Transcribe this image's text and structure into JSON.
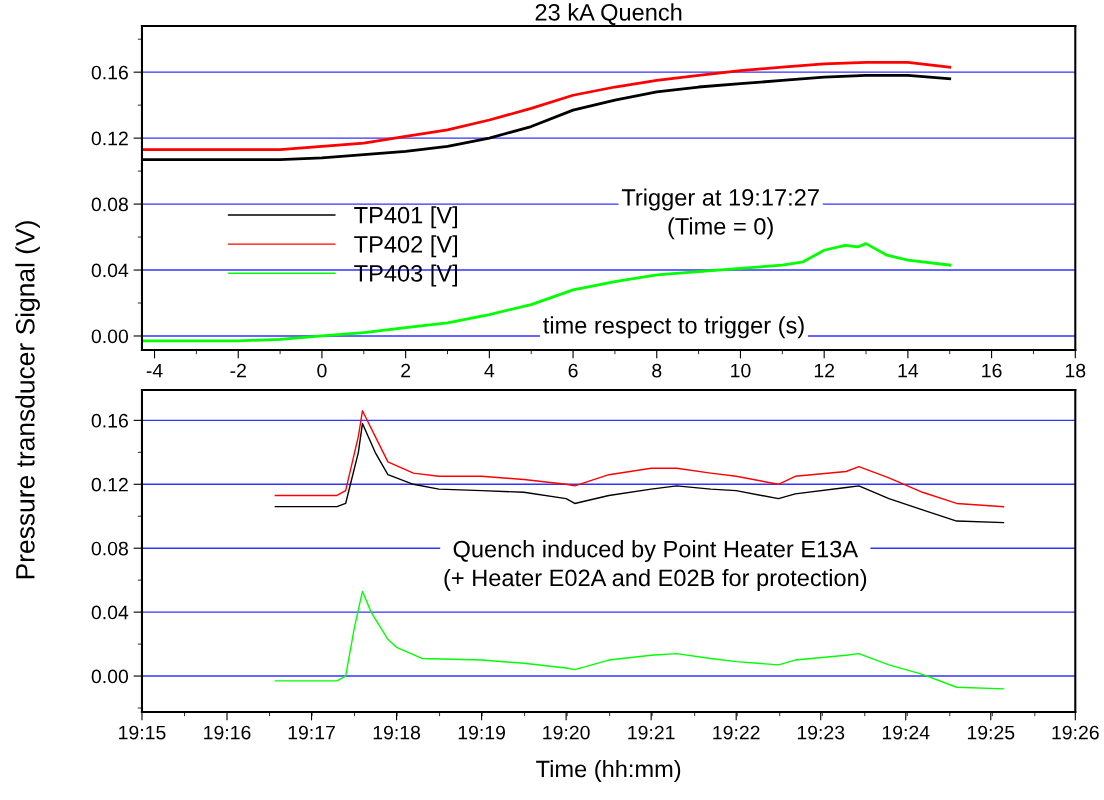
{
  "chart_data": [
    {
      "type": "line",
      "title": "23 kA Quench",
      "ylabel": "Pressure transducer Signal (V)",
      "annotations": [
        "Trigger at 19:17:27\n(Time = 0)",
        "time respect to trigger (s)"
      ],
      "xlim": [
        -4.3,
        18
      ],
      "xticks": [
        -4,
        -2,
        0,
        2,
        4,
        6,
        8,
        10,
        12,
        14,
        16,
        18
      ],
      "ylim": [
        -0.0085,
        0.188
      ],
      "yticks": [
        {
          "value": 0,
          "label": "0.00"
        },
        {
          "value": 0.04,
          "label": "0.04"
        },
        {
          "value": 0.08,
          "label": "0.08"
        },
        {
          "value": 0.12,
          "label": "0.12"
        },
        {
          "value": 0.16,
          "label": "0.16"
        }
      ],
      "grid": "y",
      "legend": "left",
      "marker": "none",
      "line_style": "solid",
      "series": [
        {
          "name": "TP401 [V]",
          "color": "#000000",
          "x": [
            -4.3,
            -2,
            -1,
            0,
            1,
            2,
            3,
            4,
            5,
            6,
            6.5,
            7,
            8,
            9,
            10,
            11,
            12,
            13,
            14,
            15
          ],
          "values": [
            0.107,
            0.107,
            0.107,
            0.108,
            0.11,
            0.112,
            0.115,
            0.12,
            0.127,
            0.137,
            0.14,
            0.143,
            0.148,
            0.151,
            0.153,
            0.155,
            0.157,
            0.158,
            0.158,
            0.156
          ]
        },
        {
          "name": "TP402 [V]",
          "color": "#ff0000",
          "x": [
            -4.3,
            -2,
            -1,
            0,
            1,
            2,
            3,
            4,
            5,
            6,
            7,
            8,
            9,
            10,
            11,
            12,
            13,
            14,
            15
          ],
          "values": [
            0.113,
            0.113,
            0.113,
            0.115,
            0.117,
            0.121,
            0.125,
            0.131,
            0.138,
            0.146,
            0.151,
            0.155,
            0.158,
            0.161,
            0.163,
            0.165,
            0.166,
            0.166,
            0.163
          ]
        },
        {
          "name": "TP403 [V]",
          "color": "#00ff00",
          "x": [
            -4.3,
            -2,
            -1,
            0,
            1,
            2,
            3,
            4,
            5,
            6,
            7,
            8,
            9,
            10,
            11,
            11.5,
            12,
            12.5,
            12.8,
            13,
            13.5,
            14,
            15
          ],
          "values": [
            -0.003,
            -0.003,
            -0.002,
            0.0,
            0.002,
            0.005,
            0.008,
            0.013,
            0.019,
            0.028,
            0.033,
            0.037,
            0.039,
            0.041,
            0.043,
            0.045,
            0.052,
            0.055,
            0.054,
            0.056,
            0.049,
            0.046,
            0.043
          ]
        }
      ]
    },
    {
      "type": "line",
      "xlabel": "Time (hh:mm)",
      "annotations": [
        "Quench induced by Point Heater E13A\n(+ Heater E02A and E02B for protection)"
      ],
      "xlim": [
        19.25,
        19.4333
      ],
      "xticks": [
        {
          "value": 19.25,
          "label": "19:15"
        },
        {
          "value": 19.2667,
          "label": "19:16"
        },
        {
          "value": 19.2833,
          "label": "19:17"
        },
        {
          "value": 19.3,
          "label": "19:18"
        },
        {
          "value": 19.3167,
          "label": "19:19"
        },
        {
          "value": 19.3333,
          "label": "19:20"
        },
        {
          "value": 19.35,
          "label": "19:21"
        },
        {
          "value": 19.3667,
          "label": "19:22"
        },
        {
          "value": 19.3833,
          "label": "19:23"
        },
        {
          "value": 19.4,
          "label": "19:24"
        },
        {
          "value": 19.4167,
          "label": "19:25"
        },
        {
          "value": 19.4333,
          "label": "19:26"
        }
      ],
      "ylim": [
        -0.0225,
        0.179
      ],
      "yticks": [
        {
          "value": 0,
          "label": "0.00"
        },
        {
          "value": 0.04,
          "label": "0.04"
        },
        {
          "value": 0.08,
          "label": "0.08"
        },
        {
          "value": 0.12,
          "label": "0.12"
        },
        {
          "value": 0.16,
          "label": "0.16"
        }
      ],
      "grid": "y",
      "marker": "none",
      "line_style": "solid",
      "series": [
        {
          "color": "#000000",
          "x": [
            19.2762,
            19.2883,
            19.29,
            19.2925,
            19.2933,
            19.2958,
            19.2983,
            19.3033,
            19.3083,
            19.3167,
            19.325,
            19.3333,
            19.335,
            19.3417,
            19.35,
            19.355,
            19.3617,
            19.3667,
            19.375,
            19.3783,
            19.3883,
            19.3908,
            19.3967,
            19.4033,
            19.41,
            19.4192
          ],
          "values": [
            0.106,
            0.106,
            0.108,
            0.14,
            0.158,
            0.14,
            0.126,
            0.12,
            0.117,
            0.116,
            0.115,
            0.111,
            0.108,
            0.113,
            0.117,
            0.119,
            0.117,
            0.116,
            0.111,
            0.114,
            0.118,
            0.119,
            0.111,
            0.104,
            0.097,
            0.096
          ]
        },
        {
          "color": "#ff0000",
          "x": [
            19.2762,
            19.2883,
            19.29,
            19.2925,
            19.2933,
            19.2958,
            19.2983,
            19.3033,
            19.3083,
            19.3167,
            19.325,
            19.3333,
            19.335,
            19.3417,
            19.35,
            19.355,
            19.3617,
            19.3667,
            19.375,
            19.3783,
            19.3883,
            19.3908,
            19.3967,
            19.4033,
            19.41,
            19.4192
          ],
          "values": [
            0.113,
            0.113,
            0.116,
            0.15,
            0.166,
            0.15,
            0.134,
            0.127,
            0.125,
            0.125,
            0.123,
            0.12,
            0.119,
            0.126,
            0.13,
            0.13,
            0.127,
            0.125,
            0.12,
            0.125,
            0.128,
            0.131,
            0.124,
            0.115,
            0.108,
            0.106
          ]
        },
        {
          "color": "#00ff00",
          "x": [
            19.2762,
            19.2883,
            19.29,
            19.2917,
            19.2933,
            19.295,
            19.2983,
            19.3,
            19.305,
            19.3167,
            19.325,
            19.3333,
            19.335,
            19.3417,
            19.35,
            19.355,
            19.3617,
            19.3667,
            19.375,
            19.3783,
            19.3883,
            19.3908,
            19.3967,
            19.4033,
            19.41,
            19.4192
          ],
          "values": [
            -0.003,
            -0.003,
            0.0,
            0.03,
            0.053,
            0.04,
            0.023,
            0.018,
            0.011,
            0.01,
            0.008,
            0.005,
            0.004,
            0.01,
            0.013,
            0.014,
            0.011,
            0.009,
            0.007,
            0.01,
            0.013,
            0.014,
            0.007,
            0.001,
            -0.007,
            -0.008
          ]
        }
      ]
    }
  ]
}
